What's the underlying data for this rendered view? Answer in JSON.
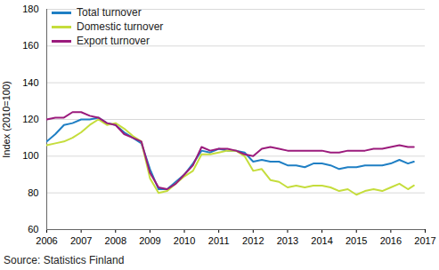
{
  "chart_data": {
    "type": "line",
    "y_label": "Index (2010=100)",
    "caption": "Source: Statistics Finland",
    "x": [
      2006,
      2006.25,
      2006.5,
      2006.75,
      2007,
      2007.25,
      2007.5,
      2007.75,
      2008,
      2008.25,
      2008.5,
      2008.75,
      2009,
      2009.25,
      2009.5,
      2009.75,
      2010,
      2010.25,
      2010.5,
      2010.75,
      2011,
      2011.25,
      2011.5,
      2011.75,
      2012,
      2012.25,
      2012.5,
      2012.75,
      2013,
      2013.25,
      2013.5,
      2013.75,
      2014,
      2014.25,
      2014.5,
      2014.75,
      2015,
      2015.25,
      2015.5,
      2015.75,
      2016,
      2016.25,
      2016.5,
      2016.67
    ],
    "series": [
      {
        "name": "Total turnover",
        "color": "#1f7fc4",
        "values": [
          108,
          112,
          117,
          118,
          120,
          120,
          121,
          118,
          117,
          113,
          110,
          107,
          93,
          82,
          82,
          86,
          90,
          96,
          103,
          102,
          104,
          103,
          103,
          102,
          97,
          98,
          97,
          97,
          95,
          95,
          94,
          96,
          96,
          95,
          93,
          94,
          94,
          95,
          95,
          95,
          96,
          98,
          96,
          97
        ]
      },
      {
        "name": "Domestic turnover",
        "color": "#c5dd3c",
        "values": [
          106,
          107,
          108,
          110,
          113,
          117,
          120,
          117,
          118,
          115,
          111,
          108,
          88,
          80,
          81,
          85,
          89,
          92,
          101,
          101,
          102,
          103,
          103,
          100,
          92,
          93,
          87,
          86,
          83,
          84,
          83,
          84,
          84,
          83,
          81,
          82,
          79,
          81,
          82,
          81,
          83,
          85,
          82,
          84
        ]
      },
      {
        "name": "Export turnover",
        "color": "#9b1b7c",
        "values": [
          120,
          121,
          121,
          124,
          124,
          122,
          121,
          118,
          117,
          112,
          110,
          108,
          91,
          83,
          82,
          85,
          90,
          95,
          105,
          103,
          104,
          104,
          103,
          101,
          100,
          104,
          105,
          104,
          103,
          103,
          103,
          103,
          103,
          102,
          102,
          103,
          103,
          103,
          104,
          104,
          105,
          106,
          105,
          105
        ]
      }
    ],
    "xlim": [
      2006,
      2017
    ],
    "xticks": [
      2006,
      2007,
      2008,
      2009,
      2010,
      2011,
      2012,
      2013,
      2014,
      2015,
      2016,
      2017
    ],
    "ylim": [
      60,
      180
    ],
    "yticks": [
      60,
      80,
      100,
      120,
      140,
      160,
      180
    ],
    "grid": true,
    "legend": "top-left"
  }
}
